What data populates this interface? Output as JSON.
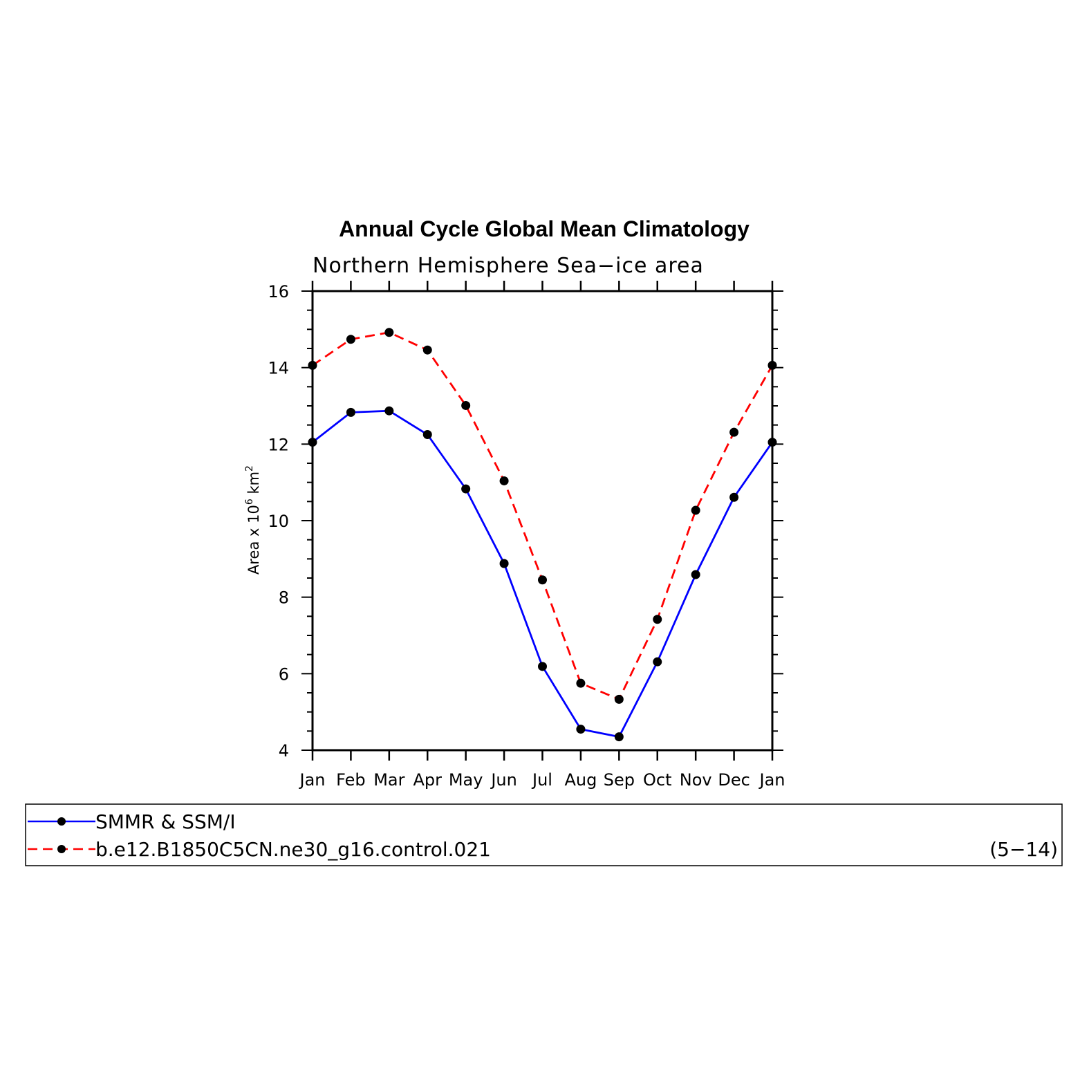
{
  "chart_data": {
    "type": "line",
    "title": "Annual Cycle Global Mean Climatology",
    "subtitle": "Northern Hemisphere Sea−ice area",
    "ylabel_parts": [
      "Area x 10",
      "6",
      " km",
      "2"
    ],
    "categories": [
      "Jan",
      "Feb",
      "Mar",
      "Apr",
      "May",
      "Jun",
      "Jul",
      "Aug",
      "Sep",
      "Oct",
      "Nov",
      "Dec",
      "Jan"
    ],
    "ylim": [
      4,
      16
    ],
    "y_ticks": [
      4,
      6,
      8,
      10,
      12,
      14,
      16
    ],
    "series": [
      {
        "name": "SMMR & SSM/I",
        "color": "#0000ff",
        "line_style": "solid",
        "marker": "filled-circle",
        "values": [
          12.05,
          12.83,
          12.87,
          12.25,
          10.83,
          8.88,
          6.19,
          4.55,
          4.35,
          6.31,
          8.59,
          10.61,
          12.05
        ]
      },
      {
        "name": "b.e12.B1850C5CN.ne30_g16.control.021",
        "color": "#ff0000",
        "line_style": "dashed",
        "marker": "filled-circle",
        "values": [
          14.06,
          14.74,
          14.92,
          14.46,
          13.01,
          11.04,
          8.45,
          5.75,
          5.33,
          7.42,
          10.27,
          12.31,
          14.06
        ]
      }
    ],
    "legend_placement": "bottom",
    "legend_note": "(5−14)",
    "grid": false
  },
  "colors": {
    "axis": "#000000",
    "marker": "#000000"
  }
}
